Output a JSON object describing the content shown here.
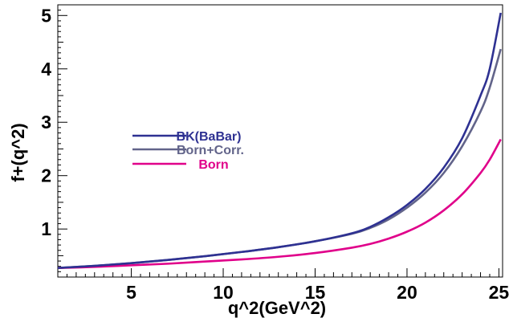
{
  "chart_data": {
    "type": "line",
    "xlabel": "q^2(GeV^2)",
    "ylabel": "f+(q^2)",
    "xlim": [
      1,
      25.2
    ],
    "ylim": [
      0.1,
      5.2
    ],
    "xticks": [
      5,
      10,
      15,
      20,
      25
    ],
    "yticks": [
      1,
      2,
      3,
      4,
      5
    ],
    "grid": false,
    "legend_placement": "upper-left",
    "series": [
      {
        "name": "BK(BaBar)",
        "color": "#2e3192",
        "x": [
          1,
          3,
          5,
          7,
          9,
          11,
          13,
          15,
          17,
          18,
          19,
          20,
          21,
          22,
          23,
          24,
          24.5,
          25.1
        ],
        "y": [
          0.27,
          0.31,
          0.36,
          0.42,
          0.49,
          0.57,
          0.66,
          0.77,
          0.92,
          1.04,
          1.22,
          1.45,
          1.75,
          2.15,
          2.7,
          3.5,
          4.0,
          5.05
        ]
      },
      {
        "name": "Born+Corr.",
        "color": "#62648a",
        "x": [
          1,
          3,
          5,
          7,
          9,
          11,
          13,
          15,
          17,
          18,
          19,
          20,
          21,
          22,
          23,
          24,
          24.5,
          25.1
        ],
        "y": [
          0.27,
          0.31,
          0.36,
          0.42,
          0.49,
          0.57,
          0.66,
          0.77,
          0.91,
          1.02,
          1.18,
          1.4,
          1.68,
          2.05,
          2.55,
          3.2,
          3.65,
          4.37
        ]
      },
      {
        "name": "Born",
        "color": "#e0008a",
        "x": [
          1,
          3,
          5,
          7,
          9,
          11,
          13,
          15,
          17,
          18,
          19,
          20,
          21,
          22,
          23,
          24,
          24.5,
          25.1
        ],
        "y": [
          0.27,
          0.29,
          0.32,
          0.35,
          0.39,
          0.43,
          0.48,
          0.55,
          0.65,
          0.72,
          0.82,
          0.95,
          1.12,
          1.35,
          1.65,
          2.05,
          2.3,
          2.68
        ]
      }
    ]
  }
}
